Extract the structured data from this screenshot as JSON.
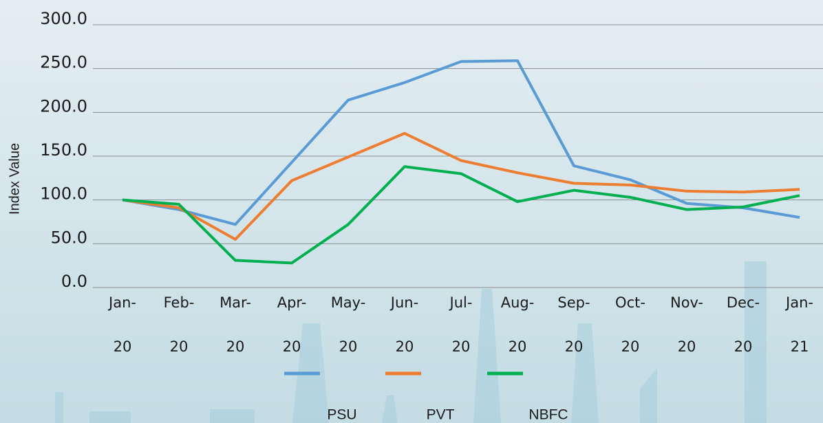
{
  "chart_data": {
    "type": "line",
    "y_label": "Index Value",
    "categories": [
      "Jan-20",
      "Feb-20",
      "Mar-20",
      "Apr-20",
      "May-20",
      "Jun-20",
      "Jul-20",
      "Aug-20",
      "Sep-20",
      "Oct-20",
      "Nov-20",
      "Dec-20",
      "Jan-21"
    ],
    "series": [
      {
        "name": "PSU",
        "color": "#5b9bd5",
        "values": [
          100,
          89,
          72,
          143,
          214,
          234,
          258,
          259,
          139,
          123,
          96,
          91,
          80
        ]
      },
      {
        "name": "PVT",
        "color": "#ed7d31",
        "values": [
          100,
          91,
          55,
          122,
          149,
          176,
          145,
          131,
          119,
          117,
          110,
          109,
          112
        ]
      },
      {
        "name": "NBFC",
        "color": "#00b050",
        "values": [
          100,
          95,
          31,
          28,
          72,
          138,
          130,
          98,
          111,
          103,
          89,
          92,
          105
        ]
      }
    ],
    "ylim": [
      0,
      300
    ],
    "yticks": [
      {
        "value": 0,
        "label": "0.0"
      },
      {
        "value": 50,
        "label": "50.0"
      },
      {
        "value": 100,
        "label": "100.0"
      },
      {
        "value": 150,
        "label": "150.0"
      },
      {
        "value": 200,
        "label": "200.0"
      },
      {
        "value": 250,
        "label": "250.0"
      },
      {
        "value": 300,
        "label": "300.0"
      }
    ],
    "grid": true
  }
}
